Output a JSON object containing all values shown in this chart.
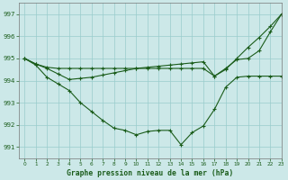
{
  "xlabel": "Graphe pression niveau de la mer (hPa)",
  "ylim": [
    990.5,
    997.5
  ],
  "xlim": [
    -0.5,
    23
  ],
  "yticks": [
    991,
    992,
    993,
    994,
    995,
    996,
    997
  ],
  "xticks": [
    0,
    1,
    2,
    3,
    4,
    5,
    6,
    7,
    8,
    9,
    10,
    11,
    12,
    13,
    14,
    15,
    16,
    17,
    18,
    19,
    20,
    21,
    22,
    23
  ],
  "bg_color": "#cce8e8",
  "grid_color": "#99cccc",
  "line_color": "#1a5c1a",
  "line1_x": [
    0,
    1,
    2,
    3,
    4,
    5,
    6,
    7,
    8,
    9,
    10,
    11,
    12,
    13,
    14,
    15,
    16,
    17,
    18,
    19,
    20,
    21,
    22,
    23
  ],
  "line1_y": [
    995.0,
    994.75,
    994.6,
    994.55,
    994.55,
    994.55,
    994.55,
    994.55,
    994.55,
    994.55,
    994.55,
    994.55,
    994.55,
    994.55,
    994.55,
    994.55,
    994.55,
    994.2,
    994.55,
    994.95,
    995.0,
    995.35,
    996.2,
    997.0
  ],
  "line2_x": [
    0,
    1,
    2,
    3,
    4,
    5,
    6,
    7,
    8,
    9,
    10,
    11,
    12,
    13,
    14,
    15,
    16,
    17,
    18,
    19,
    20,
    21,
    22,
    23
  ],
  "line2_y": [
    995.0,
    994.75,
    994.55,
    994.3,
    994.05,
    994.1,
    994.15,
    994.25,
    994.35,
    994.45,
    994.55,
    994.6,
    994.65,
    994.7,
    994.75,
    994.8,
    994.85,
    994.2,
    994.5,
    995.0,
    995.5,
    995.95,
    996.45,
    997.0
  ],
  "line3_x": [
    0,
    1,
    2,
    3,
    4,
    5,
    6,
    7,
    8,
    9,
    10,
    11,
    12,
    13,
    14,
    15,
    16,
    17,
    18,
    19,
    20,
    21,
    22,
    23
  ],
  "line3_y": [
    995.0,
    994.7,
    994.15,
    993.85,
    993.55,
    993.0,
    992.6,
    992.2,
    991.85,
    991.75,
    991.55,
    991.7,
    991.75,
    991.75,
    991.1,
    991.65,
    991.95,
    992.7,
    993.7,
    994.15,
    994.2,
    994.2,
    994.2,
    994.2
  ]
}
